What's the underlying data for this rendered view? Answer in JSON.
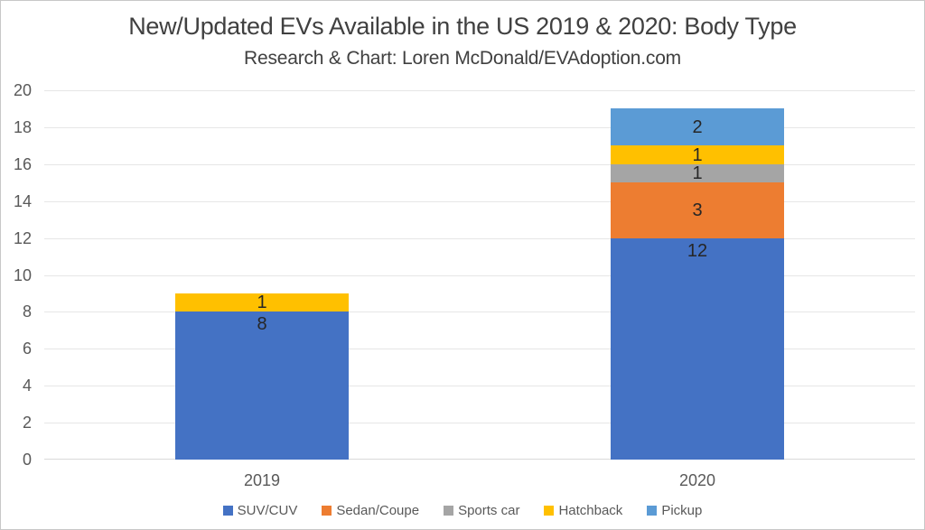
{
  "chart_data": {
    "type": "bar",
    "variant": "stacked-column",
    "title": "New/Updated EVs Available in the US 2019 & 2020: Body Type",
    "subtitle": "Research & Chart: Loren McDonald/EVAdoption.com",
    "categories": [
      "2019",
      "2020"
    ],
    "series": [
      {
        "name": "SUV/CUV",
        "color": "#4472C4",
        "values": [
          8,
          12
        ],
        "label_placement": "inside-end"
      },
      {
        "name": "Sedan/Coupe",
        "color": "#ED7D31",
        "values": [
          0,
          3
        ],
        "label_placement": "center"
      },
      {
        "name": "Sports car",
        "color": "#A5A5A5",
        "values": [
          0,
          1
        ],
        "label_placement": "center"
      },
      {
        "name": "Hatchback",
        "color": "#FFC000",
        "values": [
          1,
          1
        ],
        "label_placement": "center"
      },
      {
        "name": "Pickup",
        "color": "#5B9BD5",
        "values": [
          0,
          2
        ],
        "label_placement": "center"
      }
    ],
    "y_axis": {
      "min": 0,
      "max": 20,
      "step": 2,
      "tick_labels": [
        "0",
        "2",
        "4",
        "6",
        "8",
        "10",
        "12",
        "14",
        "16",
        "18",
        "20"
      ]
    },
    "x_axis": {
      "tick_labels": [
        "2019",
        "2020"
      ]
    },
    "legend": {
      "position": "bottom",
      "entries": [
        "SUV/CUV",
        "Sedan/Coupe",
        "Sports car",
        "Hatchback",
        "Pickup"
      ]
    },
    "grid": {
      "horizontal": true,
      "color": "#E6E6E6",
      "axis_line_color": "#D9D9D9"
    },
    "data_labels": {
      "show": true,
      "color": "#262626"
    },
    "style": {
      "background": "#FFFFFF",
      "border_color": "#C8C8C8",
      "title_color": "#404040",
      "axis_text_color": "#595959",
      "legend_text_color": "#595959"
    }
  }
}
